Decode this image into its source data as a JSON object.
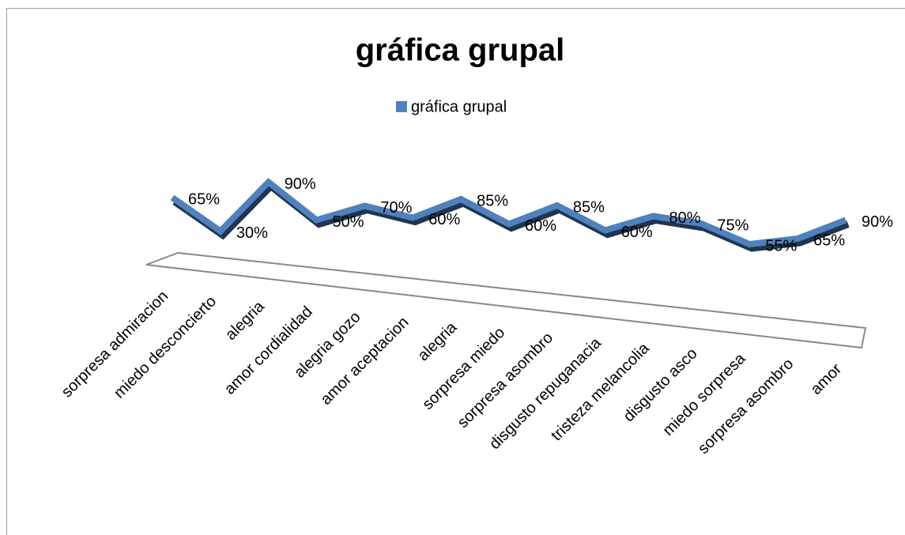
{
  "chart_data": {
    "type": "line3d",
    "title": "gráfica grupal",
    "categories": [
      "sorpresa admiracion",
      "miedo desconcierto",
      "alegria",
      "amor cordialidad",
      "alegria gozo",
      "amor aceptacion",
      "alegria",
      "sorpresa miedo",
      "sorpresa asombro",
      "disgusto repuganacia",
      "tristeza melancolia",
      "disgusto asco",
      "miedo sorpresa",
      "sorpresa asombro",
      "amor"
    ],
    "series": [
      {
        "name": "gráfica grupal",
        "color": "#4f81bd",
        "values": [
          65,
          30,
          90,
          50,
          70,
          60,
          85,
          60,
          85,
          60,
          80,
          75,
          55,
          65,
          90
        ],
        "value_labels": [
          "65%",
          "30%",
          "90%",
          "50%",
          "70%",
          "60%",
          "85%",
          "60%",
          "85%",
          "60%",
          "80%",
          "75%",
          "55%",
          "65%",
          "90%"
        ]
      }
    ],
    "legend": "top"
  }
}
